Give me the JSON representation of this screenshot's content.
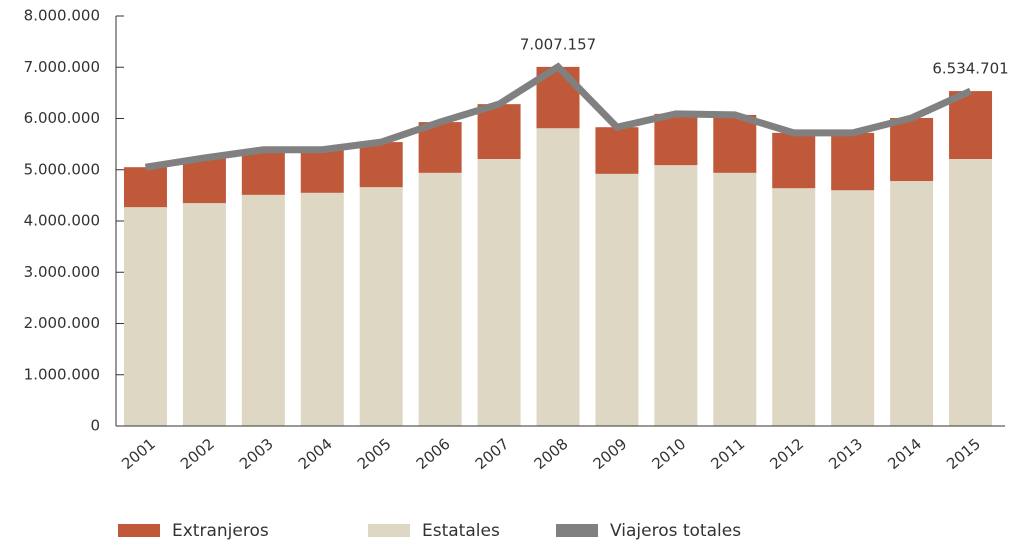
{
  "chart_data": {
    "type": "bar",
    "categories": [
      "2001",
      "2002",
      "2003",
      "2004",
      "2005",
      "2006",
      "2007",
      "2008",
      "2009",
      "2010",
      "2011",
      "2012",
      "2013",
      "2014",
      "2015"
    ],
    "series": [
      {
        "name": "Extranjeros",
        "type": "bar",
        "color": "#c0583a",
        "values": [
          780000,
          880000,
          880000,
          840000,
          880000,
          990000,
          1070000,
          1197157,
          910000,
          1000000,
          1130000,
          1080000,
          1120000,
          1230000,
          1324701
        ]
      },
      {
        "name": "Estatales",
        "type": "bar",
        "color": "#ddd7c4",
        "values": [
          4270000,
          4350000,
          4510000,
          4550000,
          4660000,
          4940000,
          5210000,
          5810000,
          4920000,
          5090000,
          4940000,
          4640000,
          4600000,
          4780000,
          5210000
        ]
      },
      {
        "name": "Viajeros totales",
        "type": "line",
        "color": "#808080",
        "values": [
          5050000,
          5230000,
          5390000,
          5390000,
          5540000,
          5930000,
          6280000,
          7007157,
          5830000,
          6090000,
          6070000,
          5720000,
          5720000,
          6010000,
          6534701
        ],
        "value_labels": [
          null,
          null,
          null,
          null,
          null,
          null,
          null,
          "7.007.157",
          null,
          null,
          null,
          null,
          null,
          null,
          "6.534.701"
        ]
      }
    ],
    "stacked": true,
    "ylim": [
      0,
      8000000
    ],
    "yticks": [
      0,
      {
        "value": 1000000,
        "label": "1.000.000"
      },
      {
        "value": 2000000,
        "label": "2.000.000"
      },
      {
        "value": 3000000,
        "label": "3.000.000"
      },
      {
        "value": 4000000,
        "label": "4.000.000"
      },
      {
        "value": 5000000,
        "label": "5.000.000"
      },
      {
        "value": 6000000,
        "label": "6.000.000"
      },
      {
        "value": 7000000,
        "label": "7.000.000"
      },
      {
        "value": 8000000,
        "label": "8.000.000"
      }
    ],
    "legend": "bottom-left"
  }
}
